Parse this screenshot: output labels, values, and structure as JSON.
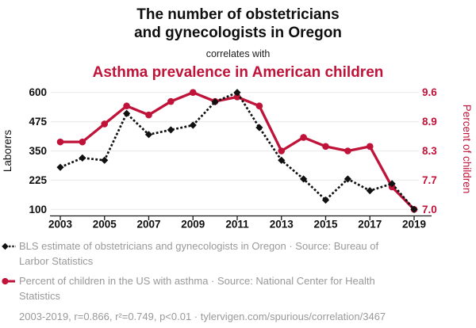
{
  "header": {
    "title": "The number of obstetricians and gynecologists in Oregon",
    "connector": "correlates with",
    "subtitle": "Asthma prevalence in American children"
  },
  "colors": {
    "accent": "#c01339",
    "black_series": "#111111",
    "muted_text": "#999999",
    "grid": "#ececec",
    "axis": "#1a1a1a"
  },
  "chart_data": {
    "type": "line",
    "x": [
      2003,
      2004,
      2005,
      2006,
      2007,
      2008,
      2009,
      2010,
      2011,
      2012,
      2013,
      2014,
      2015,
      2016,
      2017,
      2018,
      2019
    ],
    "x_tick_labels": [
      "2003",
      "2005",
      "2007",
      "2009",
      "2011",
      "2013",
      "2015",
      "2017",
      "2019"
    ],
    "series": [
      {
        "name": "BLS estimate of obstetricians and gynecologists in Oregon",
        "axis": "left",
        "style": "dashed-diamond",
        "color": "#111111",
        "values": [
          280,
          320,
          310,
          510,
          420,
          440,
          460,
          560,
          600,
          450,
          310,
          230,
          140,
          230,
          180,
          210,
          100
        ]
      },
      {
        "name": "Percent of children in the US with asthma",
        "axis": "right",
        "style": "solid-circle",
        "color": "#c01339",
        "values": [
          8.5,
          8.5,
          8.9,
          9.3,
          9.1,
          9.4,
          9.6,
          9.4,
          9.5,
          9.3,
          8.3,
          8.6,
          8.4,
          8.3,
          8.4,
          7.5,
          7.0
        ]
      }
    ],
    "left_axis": {
      "label": "Laborers",
      "min": 100,
      "max": 600,
      "ticks": [
        "100",
        "225",
        "350",
        "475",
        "600"
      ]
    },
    "right_axis": {
      "label": "Percent of children",
      "min": 7.0,
      "max": 9.6,
      "ticks": [
        "7.0",
        "7.7",
        "8.3",
        "8.9",
        "9.6"
      ]
    },
    "grid": true,
    "legend_position": "bottom"
  },
  "legend": {
    "items": [
      {
        "marker": "black-diamond-dashed",
        "label": "BLS estimate of obstetricians and gynecologists in Oregon · Source: Bureau of Larbor Statistics"
      },
      {
        "marker": "red-circle-solid",
        "label": "Percent of children in the US with asthma · Source: National Center for Health Statistics"
      }
    ]
  },
  "footer": {
    "stats": "2003-2019, r=0.866, r²=0.749, p<0.01 · tylervigen.com/spurious/correlation/3467"
  }
}
